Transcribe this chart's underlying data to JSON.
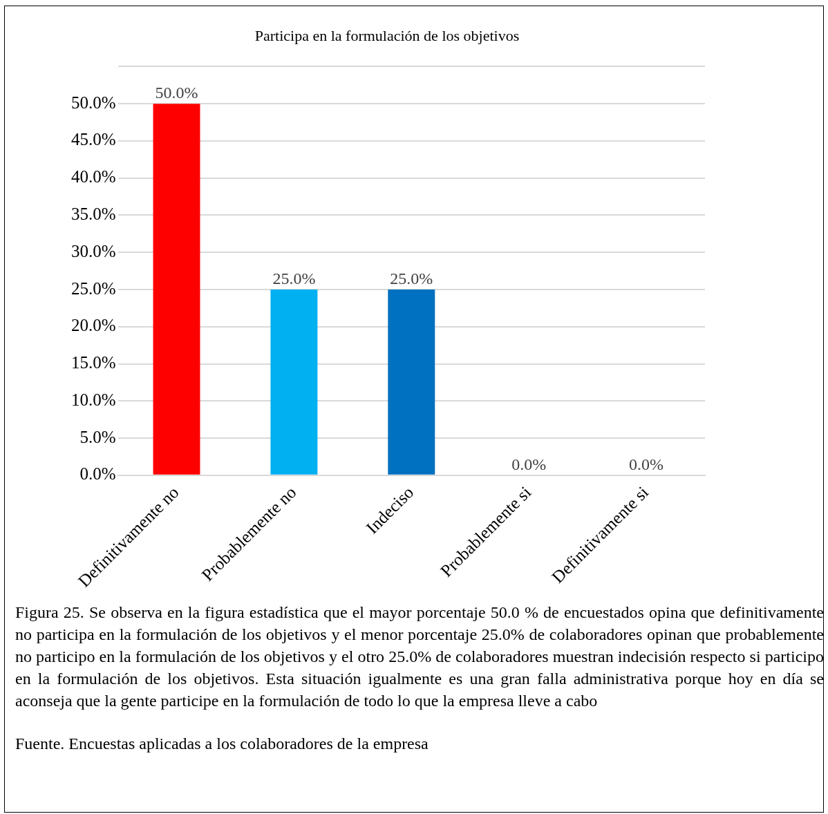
{
  "chart_data": {
    "type": "bar",
    "title": "Participa en la formulación de los objetivos",
    "categories": [
      "Definitivamente no",
      "Probablemente no",
      "Indeciso",
      "Probablemente si",
      "Definitivamente si"
    ],
    "values": [
      50,
      25,
      25,
      0,
      0
    ],
    "colors": [
      "#ff0000",
      "#00b0f0",
      "#0070c0",
      "#4d0000",
      "#4d0000"
    ],
    "value_labels": [
      "50.0%",
      "25.0%",
      "25.0%",
      "0.0%",
      "0.0%"
    ],
    "ylim": [
      0,
      55
    ],
    "yticks": [
      {
        "value": 0,
        "label": "0.0%"
      },
      {
        "value": 5,
        "label": "5.0%"
      },
      {
        "value": 10,
        "label": "10.0%"
      },
      {
        "value": 15,
        "label": "15.0%"
      },
      {
        "value": 20,
        "label": "20.0%"
      },
      {
        "value": 25,
        "label": "25.0%"
      },
      {
        "value": 30,
        "label": "30.0%"
      },
      {
        "value": 35,
        "label": "35.0%"
      },
      {
        "value": 40,
        "label": "40.0%"
      },
      {
        "value": 45,
        "label": "45.0%"
      },
      {
        "value": 50,
        "label": "50.0%"
      },
      {
        "value": 55,
        "label": null
      }
    ],
    "grid": "y",
    "legend": false,
    "annotations": [
      "Figura 25. Se observa en la figura estadística que el mayor porcentaje 50.0 % de encuestados opina que definitivamente no participa en la formulación de los objetivos y el menor porcentaje 25.0% de colaboradores opinan que probablemente no participo en la formulación de los objetivos y el otro 25.0% de colaboradores muestran indecisión respecto si participo en la formulación de los objetivos. Esta situación igualmente es una gran falla administrativa porque hoy en día se aconseja que la gente participe en la formulación de todo lo que la empresa lleve a cabo",
      "Fuente. Encuestas aplicadas a los colaboradores de la empresa"
    ]
  }
}
